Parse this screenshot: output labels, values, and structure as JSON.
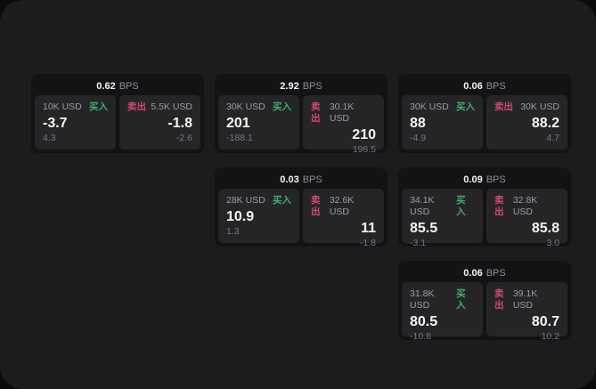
{
  "labels": {
    "bps_unit": "BPS",
    "buy": "买入",
    "sell": "卖出"
  },
  "colors": {
    "buy": "#3fae6d",
    "sell": "#d4486e",
    "panel": "#1c1c1e",
    "card": "#131315",
    "cell": "#252528"
  },
  "cards": [
    {
      "bps": "0.62",
      "buy": {
        "amount": "10K USD",
        "price": "-3.7",
        "delta": "4.3"
      },
      "sell": {
        "amount": "5.5K USD",
        "price": "-1.8",
        "delta": "-2.6"
      }
    },
    {
      "bps": "2.92",
      "buy": {
        "amount": "30K USD",
        "price": "201",
        "delta": "-188.1"
      },
      "sell": {
        "amount": "30.1K USD",
        "price": "210",
        "delta": "196.5"
      }
    },
    {
      "bps": "0.06",
      "buy": {
        "amount": "30K USD",
        "price": "88",
        "delta": "-4.9"
      },
      "sell": {
        "amount": "30K USD",
        "price": "88.2",
        "delta": "4.7"
      }
    },
    {
      "bps": "0.03",
      "buy": {
        "amount": "28K USD",
        "price": "10.9",
        "delta": "1.3"
      },
      "sell": {
        "amount": "32.6K USD",
        "price": "11",
        "delta": "-1.8"
      }
    },
    {
      "bps": "0.09",
      "buy": {
        "amount": "34.1K USD",
        "price": "85.5",
        "delta": "-3.1"
      },
      "sell": {
        "amount": "32.8K USD",
        "price": "85.8",
        "delta": "3.0"
      }
    },
    {
      "bps": "0.06",
      "buy": {
        "amount": "31.8K USD",
        "price": "80.5",
        "delta": "-10.8"
      },
      "sell": {
        "amount": "39.1K USD",
        "price": "80.7",
        "delta": "10.2"
      }
    }
  ]
}
